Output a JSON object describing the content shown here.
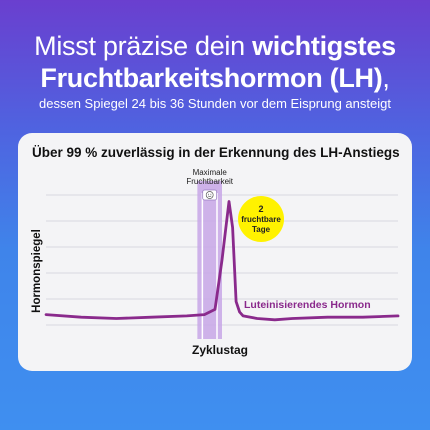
{
  "headline": {
    "line1_regular": "Misst präzise dein ",
    "line1_bold": "wichtigstes",
    "line2_bold": "Fruchtbarkeitshormon (LH)",
    "line2_regular": ",",
    "subline": "dessen Spiegel 24 bis 36 Stunden vor dem Eisprung ansteigt"
  },
  "card": {
    "title": "Über 99 % zuverlässig in der Erkennung des LH-Anstiegs"
  },
  "chart_data": {
    "type": "line",
    "title": "Über 99 % zuverlässig in der Erkennung des LH-Anstiegs",
    "xlabel": "Zyklustag",
    "ylabel": "Hormonspiegel",
    "series": [
      {
        "name": "Luteinisierendes Hormon",
        "color": "#8a2a8c",
        "x": [
          0,
          10,
          20,
          30,
          40,
          45,
          48,
          50,
          52,
          53,
          54,
          55,
          56,
          60,
          65,
          70,
          80,
          90,
          100
        ],
        "y": [
          8,
          6,
          5,
          6,
          7,
          8,
          12,
          50,
          95,
          75,
          18,
          10,
          7,
          5,
          4,
          5,
          6,
          6,
          7
        ]
      }
    ],
    "highlight": {
      "label_line1": "Maximale",
      "label_line2": "Fruchtbarkeit",
      "x_start": 43,
      "x_end": 50,
      "color": "#c7a6e6"
    },
    "badge": {
      "line1": "2",
      "line2": "fruchtbare",
      "line3": "Tage",
      "color": "#fff200"
    },
    "grid": true,
    "icon": "smiley-icon"
  }
}
